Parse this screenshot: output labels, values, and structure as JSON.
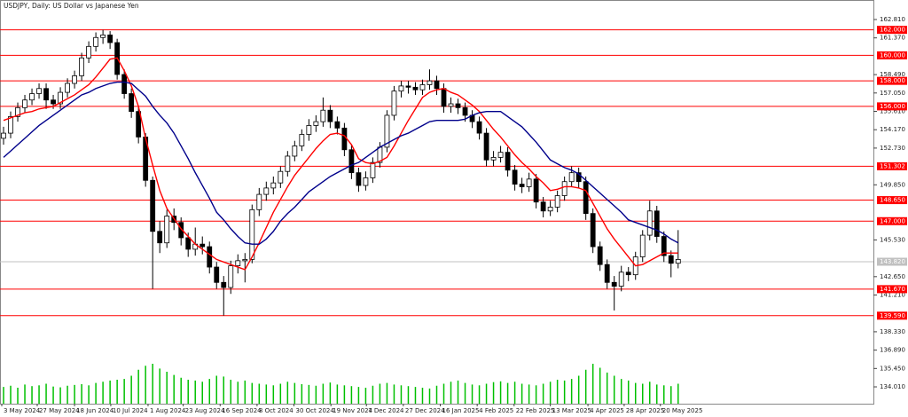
{
  "chart_data": {
    "type": "candlestick",
    "title": "USDJPY, Daily:  US Dollar vs Japanese Yen",
    "xlim": [
      -0.5,
      122.5
    ],
    "xticks": [
      {
        "value": -0.25,
        "label": "3 May 2024"
      },
      {
        "value": 4.74,
        "label": "27 May 2024"
      },
      {
        "value": 10.0,
        "label": "18 Jun 2024"
      },
      {
        "value": 15.1,
        "label": "10 Jul 2024"
      },
      {
        "value": 20.35,
        "label": "1 Aug 2024"
      },
      {
        "value": 25.3,
        "label": "23 Aug 2024"
      },
      {
        "value": 30.5,
        "label": "16 Sep 2024"
      },
      {
        "value": 35.7,
        "label": "8 Oct 2024"
      },
      {
        "value": 40.9,
        "label": "30 Oct 2024"
      },
      {
        "value": 46.1,
        "label": "19 Nov 2024"
      },
      {
        "value": 51.1,
        "label": "7 Dec 2024"
      },
      {
        "value": 56.3,
        "label": "27 Dec 2024"
      },
      {
        "value": 61.5,
        "label": "16 Jan 2025"
      },
      {
        "value": 66.7,
        "label": "4 Feb 2025"
      },
      {
        "value": 71.9,
        "label": "22 Feb 2025"
      },
      {
        "value": 77.0,
        "label": "13 Mar 2025"
      },
      {
        "value": 82.3,
        "label": "4 Apr 2025"
      },
      {
        "value": 87.4,
        "label": "28 Apr 2025"
      },
      {
        "value": 92.5,
        "label": "20 May 2025"
      }
    ],
    "ylim": [
      132.69,
      164.34
    ],
    "yticks": [
      {
        "value": 162.81,
        "label": "162.810"
      },
      {
        "value": 161.37,
        "label": "161.370"
      },
      {
        "value": 158.49,
        "label": "158.490"
      },
      {
        "value": 157.05,
        "label": "157.050"
      },
      {
        "value": 155.61,
        "label": "155.610"
      },
      {
        "value": 154.17,
        "label": "154.170"
      },
      {
        "value": 152.73,
        "label": "152.730"
      },
      {
        "value": 149.85,
        "label": "149.850"
      },
      {
        "value": 145.53,
        "label": "145.530"
      },
      {
        "value": 142.65,
        "label": "142.650"
      },
      {
        "value": 141.21,
        "label": "141.210"
      },
      {
        "value": 138.33,
        "label": "138.330"
      },
      {
        "value": 136.89,
        "label": "136.890"
      },
      {
        "value": 135.45,
        "label": "135.450"
      },
      {
        "value": 134.01,
        "label": "134.010"
      }
    ],
    "up_color": "#ffffff",
    "down_color": "#000000",
    "ohlc": [
      [
        153.5,
        154.4,
        153.0,
        153.9
      ],
      [
        153.9,
        155.6,
        153.5,
        155.2
      ],
      [
        155.2,
        156.3,
        154.8,
        155.9
      ],
      [
        155.9,
        156.9,
        155.5,
        156.5
      ],
      [
        156.5,
        157.4,
        156.1,
        157.0
      ],
      [
        157.0,
        157.8,
        156.6,
        157.4
      ],
      [
        157.4,
        157.8,
        155.8,
        156.5
      ],
      [
        156.5,
        156.9,
        155.8,
        156.2
      ],
      [
        156.2,
        157.5,
        155.8,
        157.1
      ],
      [
        157.1,
        158.2,
        156.7,
        157.8
      ],
      [
        157.8,
        158.8,
        157.4,
        158.4
      ],
      [
        158.4,
        160.2,
        158.0,
        159.8
      ],
      [
        159.8,
        161.1,
        159.4,
        160.7
      ],
      [
        160.7,
        161.8,
        160.3,
        161.4
      ],
      [
        161.4,
        162.0,
        160.9,
        161.6
      ],
      [
        161.6,
        161.9,
        160.5,
        161.0
      ],
      [
        161.0,
        161.3,
        158.1,
        158.5
      ],
      [
        158.5,
        158.9,
        156.6,
        157.0
      ],
      [
        157.0,
        157.4,
        155.1,
        155.6
      ],
      [
        155.6,
        156.0,
        153.1,
        153.6
      ],
      [
        153.6,
        153.9,
        149.7,
        150.2
      ],
      [
        150.2,
        150.5,
        141.7,
        146.2
      ],
      [
        146.2,
        147.0,
        144.5,
        145.3
      ],
      [
        145.3,
        147.9,
        144.9,
        147.4
      ],
      [
        147.4,
        148.0,
        146.3,
        146.9
      ],
      [
        146.9,
        147.3,
        145.1,
        145.7
      ],
      [
        145.7,
        146.1,
        144.2,
        144.8
      ],
      [
        144.8,
        146.5,
        144.3,
        145.2
      ],
      [
        145.2,
        145.8,
        144.4,
        145.0
      ],
      [
        145.0,
        145.4,
        142.9,
        143.4
      ],
      [
        143.4,
        143.8,
        141.7,
        142.2
      ],
      [
        142.2,
        142.7,
        139.6,
        141.8
      ],
      [
        141.8,
        143.9,
        141.3,
        143.5
      ],
      [
        143.5,
        144.4,
        142.9,
        143.9
      ],
      [
        143.9,
        144.5,
        142.2,
        144.0
      ],
      [
        144.0,
        148.3,
        143.7,
        147.9
      ],
      [
        147.9,
        149.6,
        147.4,
        149.1
      ],
      [
        149.1,
        150.1,
        148.6,
        149.6
      ],
      [
        149.6,
        150.5,
        149.1,
        150.0
      ],
      [
        150.0,
        151.3,
        149.6,
        150.9
      ],
      [
        150.9,
        152.5,
        150.5,
        152.1
      ],
      [
        152.1,
        153.3,
        151.7,
        152.9
      ],
      [
        152.9,
        154.2,
        152.5,
        153.8
      ],
      [
        153.8,
        155.0,
        153.3,
        154.5
      ],
      [
        154.5,
        155.3,
        154.0,
        154.8
      ],
      [
        154.8,
        156.7,
        154.4,
        155.7
      ],
      [
        155.7,
        156.1,
        154.3,
        154.8
      ],
      [
        154.8,
        155.2,
        153.8,
        154.3
      ],
      [
        154.3,
        154.7,
        152.1,
        152.6
      ],
      [
        152.6,
        153.0,
        150.3,
        150.8
      ],
      [
        150.8,
        151.2,
        149.3,
        149.8
      ],
      [
        149.8,
        150.9,
        149.4,
        150.4
      ],
      [
        150.4,
        152.0,
        150.0,
        151.6
      ],
      [
        151.6,
        153.2,
        151.2,
        152.8
      ],
      [
        152.8,
        155.7,
        152.4,
        155.3
      ],
      [
        155.3,
        157.6,
        154.9,
        157.2
      ],
      [
        157.2,
        158.0,
        156.7,
        157.6
      ],
      [
        157.6,
        158.0,
        157.0,
        157.5
      ],
      [
        157.5,
        157.9,
        156.9,
        157.3
      ],
      [
        157.3,
        158.1,
        156.9,
        157.7
      ],
      [
        157.7,
        158.9,
        157.3,
        158.0
      ],
      [
        158.0,
        158.4,
        156.9,
        157.4
      ],
      [
        157.4,
        157.8,
        155.5,
        156.0
      ],
      [
        156.0,
        156.7,
        155.5,
        156.2
      ],
      [
        156.2,
        156.6,
        155.4,
        155.9
      ],
      [
        155.9,
        156.3,
        154.8,
        155.3
      ],
      [
        155.3,
        155.7,
        154.3,
        154.8
      ],
      [
        154.8,
        155.2,
        153.4,
        153.9
      ],
      [
        153.9,
        154.3,
        151.3,
        151.8
      ],
      [
        151.8,
        152.5,
        151.3,
        152.0
      ],
      [
        152.0,
        152.9,
        151.6,
        152.4
      ],
      [
        152.4,
        152.8,
        150.5,
        151.0
      ],
      [
        151.0,
        151.4,
        149.4,
        149.9
      ],
      [
        149.9,
        150.4,
        149.2,
        149.7
      ],
      [
        149.7,
        150.8,
        149.3,
        150.3
      ],
      [
        150.3,
        150.7,
        148.0,
        148.5
      ],
      [
        148.5,
        148.9,
        147.3,
        147.8
      ],
      [
        147.8,
        148.6,
        147.4,
        148.1
      ],
      [
        148.1,
        149.4,
        147.7,
        149.0
      ],
      [
        149.0,
        150.5,
        148.6,
        150.1
      ],
      [
        150.1,
        151.3,
        149.7,
        150.8
      ],
      [
        150.8,
        151.2,
        149.6,
        150.1
      ],
      [
        150.1,
        150.5,
        147.1,
        147.6
      ],
      [
        147.6,
        148.0,
        144.5,
        145.0
      ],
      [
        145.0,
        145.4,
        143.1,
        143.6
      ],
      [
        143.6,
        144.0,
        141.7,
        142.2
      ],
      [
        142.2,
        142.7,
        140.0,
        141.9
      ],
      [
        141.9,
        143.5,
        141.5,
        143.0
      ],
      [
        143.0,
        143.4,
        142.3,
        142.8
      ],
      [
        142.8,
        144.6,
        142.4,
        144.2
      ],
      [
        144.2,
        146.3,
        143.8,
        145.9
      ],
      [
        145.9,
        148.6,
        145.5,
        147.8
      ],
      [
        147.8,
        148.2,
        145.3,
        145.8
      ],
      [
        145.8,
        146.2,
        143.8,
        144.3
      ],
      [
        144.3,
        144.7,
        142.6,
        143.7
      ],
      [
        143.7,
        146.3,
        143.3,
        144.0
      ]
    ],
    "series": [
      {
        "color": "#ff0000",
        "values": [
          154.9,
          155.1,
          155.3,
          155.5,
          155.6,
          155.8,
          155.9,
          156.0,
          156.3,
          156.6,
          156.9,
          157.3,
          157.7,
          158.3,
          159.0,
          159.7,
          159.8,
          158.8,
          157.6,
          156.0,
          153.5,
          151.4,
          149.4,
          148.0,
          147.2,
          146.4,
          145.8,
          145.2,
          144.8,
          144.4,
          144.0,
          143.8,
          143.6,
          143.4,
          143.2,
          144.2,
          145.3,
          146.5,
          147.7,
          148.7,
          149.7,
          150.6,
          151.3,
          152.0,
          152.7,
          153.3,
          153.8,
          153.9,
          153.7,
          153.0,
          151.9,
          151.6,
          151.5,
          151.7,
          152.0,
          152.9,
          153.9,
          154.9,
          155.8,
          156.7,
          157.1,
          157.3,
          157.4,
          157.1,
          156.9,
          156.5,
          156.1,
          155.6,
          154.9,
          154.2,
          153.6,
          152.9,
          152.2,
          151.6,
          151.1,
          150.5,
          150.0,
          149.4,
          149.5,
          149.7,
          149.7,
          149.6,
          149.4,
          148.4,
          147.4,
          146.4,
          145.6,
          144.9,
          144.2,
          143.5,
          143.6,
          143.9,
          144.2,
          144.5,
          144.5,
          144.5
        ]
      },
      {
        "color": "#00008b",
        "values": [
          152.0,
          152.5,
          153.0,
          153.5,
          154.0,
          154.5,
          154.9,
          155.3,
          155.7,
          156.1,
          156.5,
          156.9,
          157.1,
          157.4,
          157.6,
          157.8,
          157.9,
          157.9,
          157.8,
          157.3,
          156.8,
          156.0,
          155.3,
          154.7,
          153.9,
          152.9,
          151.9,
          150.8,
          149.8,
          148.8,
          147.7,
          147.1,
          146.4,
          145.8,
          145.3,
          145.2,
          145.2,
          145.6,
          146.2,
          147.0,
          147.6,
          148.1,
          148.7,
          149.3,
          149.7,
          150.1,
          150.5,
          150.8,
          151.1,
          151.4,
          151.6,
          152.0,
          152.4,
          152.8,
          153.1,
          153.4,
          153.7,
          153.9,
          154.2,
          154.5,
          154.8,
          154.9,
          154.9,
          154.9,
          154.9,
          155.0,
          155.3,
          155.5,
          155.6,
          155.6,
          155.6,
          155.2,
          154.8,
          154.4,
          153.8,
          153.2,
          152.5,
          151.8,
          151.5,
          151.2,
          151.0,
          150.7,
          150.2,
          149.7,
          149.2,
          148.7,
          148.2,
          147.7,
          147.1,
          146.9,
          146.7,
          146.5,
          146.3,
          146.0,
          145.6,
          145.3
        ]
      }
    ],
    "volume": {
      "color": "#00c000",
      "ylim": [
        0,
        300
      ],
      "values": [
        42,
        45,
        40,
        48,
        44,
        46,
        50,
        43,
        41,
        45,
        47,
        49,
        46,
        52,
        55,
        58,
        60,
        62,
        70,
        85,
        95,
        100,
        88,
        80,
        72,
        65,
        60,
        58,
        55,
        62,
        70,
        68,
        60,
        55,
        58,
        52,
        50,
        48,
        46,
        50,
        55,
        52,
        49,
        47,
        45,
        50,
        53,
        48,
        46,
        44,
        42,
        40,
        45,
        50,
        52,
        48,
        46,
        44,
        42,
        40,
        38,
        45,
        50,
        55,
        58,
        52,
        48,
        46,
        50,
        54,
        56,
        52,
        55,
        50,
        48,
        46,
        50,
        55,
        60,
        58,
        62,
        70,
        85,
        100,
        90,
        78,
        70,
        62,
        58,
        52,
        50,
        55,
        48,
        46,
        44,
        50
      ]
    },
    "levels_color": "#ff0000",
    "levels": [
      {
        "value": 162.0,
        "label": "162.000"
      },
      {
        "value": 160.0,
        "label": "160.000"
      },
      {
        "value": 158.0,
        "label": "158.000"
      },
      {
        "value": 156.0,
        "label": "156.000"
      },
      {
        "value": 151.302,
        "label": "151.302"
      },
      {
        "value": 148.65,
        "label": "148.650"
      },
      {
        "value": 147.0,
        "label": "147.000"
      },
      {
        "value": 141.67,
        "label": "141.670"
      },
      {
        "value": 139.59,
        "label": "139.590"
      }
    ],
    "last_price_color": "#c0c0c0",
    "last_price": {
      "value": 143.82,
      "label": "143.820"
    }
  }
}
